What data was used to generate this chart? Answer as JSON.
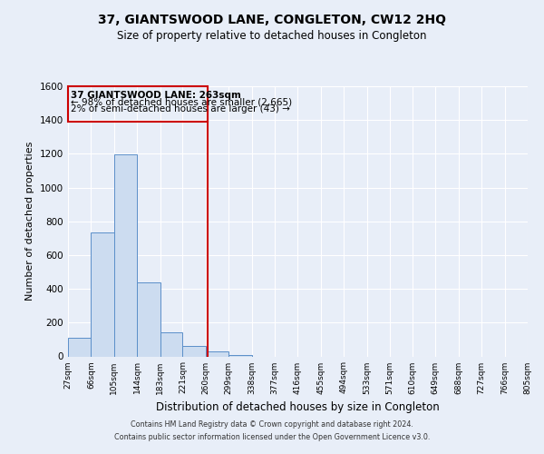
{
  "title": "37, GIANTSWOOD LANE, CONGLETON, CW12 2HQ",
  "subtitle": "Size of property relative to detached houses in Congleton",
  "xlabel": "Distribution of detached houses by size in Congleton",
  "ylabel": "Number of detached properties",
  "bin_edges": [
    27,
    66,
    105,
    144,
    183,
    221,
    260,
    299,
    338,
    377,
    416,
    455,
    494,
    533,
    571,
    610,
    649,
    688,
    727,
    766,
    805
  ],
  "bar_heights": [
    110,
    735,
    1195,
    440,
    145,
    60,
    30,
    10,
    0,
    0,
    0,
    0,
    0,
    0,
    0,
    0,
    0,
    0,
    0,
    0
  ],
  "bar_color": "#ccdcf0",
  "bar_edgecolor": "#5b8fc9",
  "property_size": 263,
  "vline_color": "#cc0000",
  "annotation_text_line1": "37 GIANTSWOOD LANE: 263sqm",
  "annotation_text_line2": "← 98% of detached houses are smaller (2,665)",
  "annotation_text_line3": "2% of semi-detached houses are larger (43) →",
  "annotation_box_color": "#cc0000",
  "ylim": [
    0,
    1600
  ],
  "yticks": [
    0,
    200,
    400,
    600,
    800,
    1000,
    1200,
    1400,
    1600
  ],
  "background_color": "#e8eef8",
  "axes_background": "#e8eef8",
  "footer_line1": "Contains HM Land Registry data © Crown copyright and database right 2024.",
  "footer_line2": "Contains public sector information licensed under the Open Government Licence v3.0."
}
